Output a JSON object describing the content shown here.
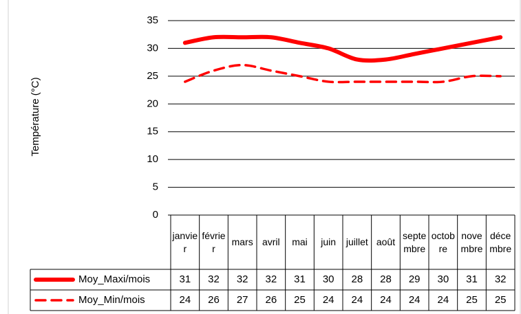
{
  "chart_data": {
    "type": "line",
    "y_axis_label": "Température (°C)",
    "categories": [
      "janvier",
      "février",
      "mars",
      "avril",
      "mai",
      "juin",
      "juillet",
      "août",
      "septembre",
      "octobre",
      "novembre",
      "décembre"
    ],
    "series": [
      {
        "name": "Moy_Maxi/mois",
        "color": "#ff0000",
        "dashed": false,
        "values": [
          31,
          32,
          32,
          32,
          31,
          30,
          28,
          28,
          29,
          30,
          31,
          32
        ]
      },
      {
        "name": "Moy_Min/mois",
        "color": "#ff0000",
        "dashed": true,
        "values": [
          24,
          26,
          27,
          26,
          25,
          24,
          24,
          24,
          24,
          24,
          25,
          25
        ]
      }
    ],
    "ylim": [
      0,
      35
    ],
    "yticks": [
      0,
      5,
      10,
      15,
      20,
      25,
      30,
      35
    ],
    "grid": true,
    "data_table": true
  }
}
